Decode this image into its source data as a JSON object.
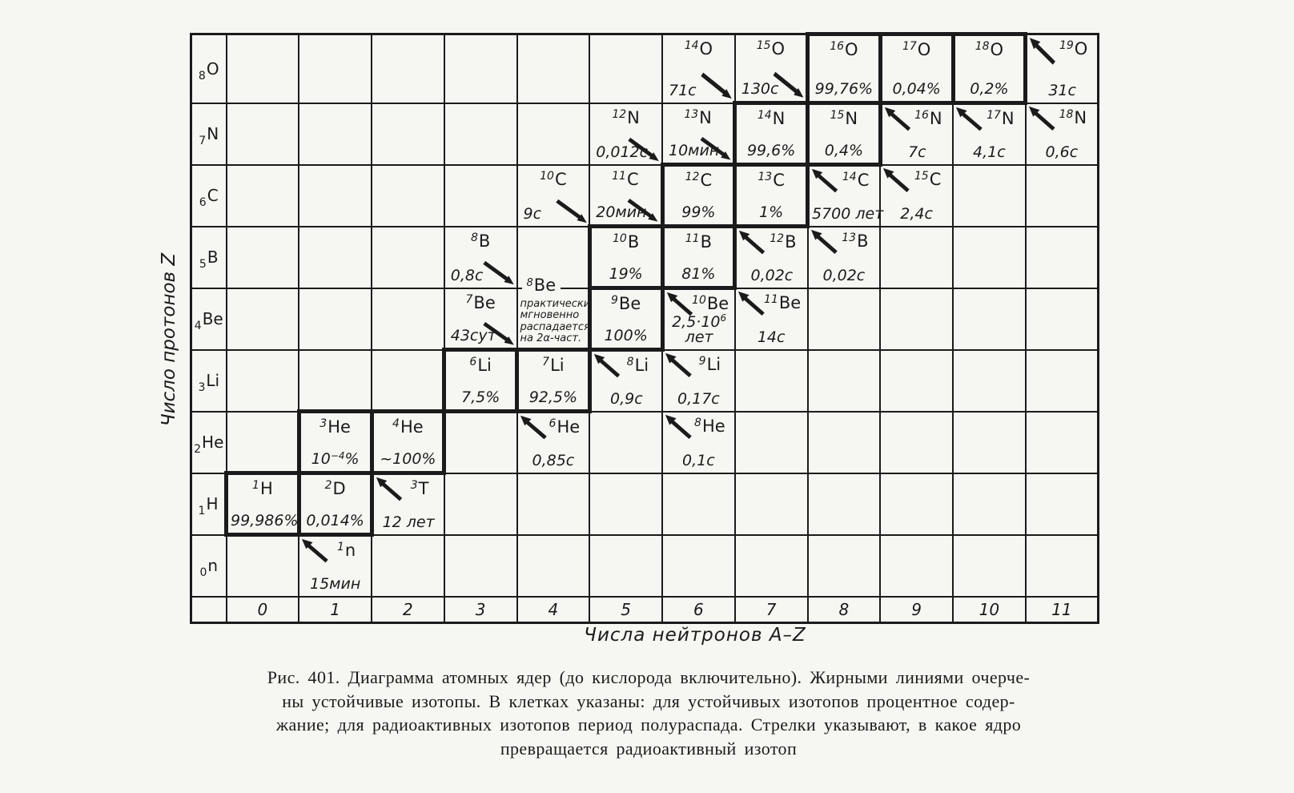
{
  "colors": {
    "ink": "#1b1b1b",
    "paper": "#f6f6f2"
  },
  "figure": {
    "y_axis_label": "Число протонов Z",
    "x_axis_label": "Числа нейтронов A–Z",
    "caption_lines": [
      "Рис. 401. Диаграмма атомных ядер (до кислорода включительно). Жирными линиями очерче-",
      "ны устойчивые изотопы. В клетках указаны: для устойчивых изотопов процентное содер-",
      "жание; для радиоактивных изотопов период полураспада. Стрелки указывают, в какое ядро",
      "превращается радиоактивный изотоп"
    ],
    "column_numbers": [
      "0",
      "1",
      "2",
      "3",
      "4",
      "5",
      "6",
      "7",
      "8",
      "9",
      "10",
      "11"
    ],
    "rows": [
      {
        "z": 8,
        "sub": "8",
        "sym": "O"
      },
      {
        "z": 7,
        "sub": "7",
        "sym": "N"
      },
      {
        "z": 6,
        "sub": "6",
        "sym": "C"
      },
      {
        "z": 5,
        "sub": "5",
        "sym": "B"
      },
      {
        "z": 4,
        "sub": "4",
        "sym": "Be"
      },
      {
        "z": 3,
        "sub": "3",
        "sym": "Li"
      },
      {
        "z": 2,
        "sub": "2",
        "sym": "He"
      },
      {
        "z": 1,
        "sub": "1",
        "sym": "H"
      },
      {
        "z": 0,
        "sub": "0",
        "sym": "n"
      }
    ],
    "isotopes": [
      {
        "z": 8,
        "n": 6,
        "mass": "14",
        "sym": "O",
        "value": "71с",
        "stable": false,
        "arrow": "dr"
      },
      {
        "z": 8,
        "n": 7,
        "mass": "15",
        "sym": "O",
        "value": "130с",
        "stable": false,
        "arrow": "dr"
      },
      {
        "z": 8,
        "n": 8,
        "mass": "16",
        "sym": "O",
        "value": "99,76%",
        "stable": true,
        "arrow": null
      },
      {
        "z": 8,
        "n": 9,
        "mass": "17",
        "sym": "O",
        "value": "0,04%",
        "stable": true,
        "arrow": null
      },
      {
        "z": 8,
        "n": 10,
        "mass": "18",
        "sym": "O",
        "value": "0,2%",
        "stable": true,
        "arrow": null
      },
      {
        "z": 8,
        "n": 11,
        "mass": "19",
        "sym": "O",
        "value": "31с",
        "stable": false,
        "arrow": "ul"
      },
      {
        "z": 7,
        "n": 5,
        "mass": "12",
        "sym": "N",
        "value": "0,012с",
        "stable": false,
        "arrow": "dr"
      },
      {
        "z": 7,
        "n": 6,
        "mass": "13",
        "sym": "N",
        "value": "10мин",
        "stable": false,
        "arrow": "dr"
      },
      {
        "z": 7,
        "n": 7,
        "mass": "14",
        "sym": "N",
        "value": "99,6%",
        "stable": true,
        "arrow": null
      },
      {
        "z": 7,
        "n": 8,
        "mass": "15",
        "sym": "N",
        "value": "0,4%",
        "stable": true,
        "arrow": null
      },
      {
        "z": 7,
        "n": 9,
        "mass": "16",
        "sym": "N",
        "value": "7с",
        "stable": false,
        "arrow": "ul"
      },
      {
        "z": 7,
        "n": 10,
        "mass": "17",
        "sym": "N",
        "value": "4,1с",
        "stable": false,
        "arrow": "ul"
      },
      {
        "z": 7,
        "n": 11,
        "mass": "18",
        "sym": "N",
        "value": "0,6с",
        "stable": false,
        "arrow": "ul"
      },
      {
        "z": 6,
        "n": 4,
        "mass": "10",
        "sym": "C",
        "value": "9с",
        "stable": false,
        "arrow": "dr"
      },
      {
        "z": 6,
        "n": 5,
        "mass": "11",
        "sym": "C",
        "value": "20мин",
        "stable": false,
        "arrow": "dr"
      },
      {
        "z": 6,
        "n": 6,
        "mass": "12",
        "sym": "C",
        "value": "99%",
        "stable": true,
        "arrow": null
      },
      {
        "z": 6,
        "n": 7,
        "mass": "13",
        "sym": "C",
        "value": "1%",
        "stable": true,
        "arrow": null
      },
      {
        "z": 6,
        "n": 8,
        "mass": "14",
        "sym": "C",
        "value": "5700 лет",
        "stable": false,
        "arrow": "ul"
      },
      {
        "z": 6,
        "n": 9,
        "mass": "15",
        "sym": "C",
        "value": "2,4с",
        "stable": false,
        "arrow": "ul"
      },
      {
        "z": 5,
        "n": 3,
        "mass": "8",
        "sym": "B",
        "value": "0,8с",
        "stable": false,
        "arrow": "dr"
      },
      {
        "z": 5,
        "n": 5,
        "mass": "10",
        "sym": "B",
        "value": "19%",
        "stable": true,
        "arrow": null
      },
      {
        "z": 5,
        "n": 6,
        "mass": "11",
        "sym": "B",
        "value": "81%",
        "stable": true,
        "arrow": null
      },
      {
        "z": 5,
        "n": 7,
        "mass": "12",
        "sym": "B",
        "value": "0,02с",
        "stable": false,
        "arrow": "ul"
      },
      {
        "z": 5,
        "n": 8,
        "mass": "13",
        "sym": "B",
        "value": "0,02с",
        "stable": false,
        "arrow": "ul"
      },
      {
        "z": 4,
        "n": 3,
        "mass": "7",
        "sym": "Be",
        "value": "43сут",
        "stable": false,
        "arrow": "dr"
      },
      {
        "z": 4,
        "n": 4,
        "mass": "8",
        "sym": "Be",
        "value": "",
        "stable": false,
        "arrow": null,
        "note_lines": [
          "практически",
          "мгновенно",
          "распадается",
          "на 2α-част."
        ]
      },
      {
        "z": 4,
        "n": 5,
        "mass": "9",
        "sym": "Be",
        "value": "100%",
        "stable": true,
        "arrow": null
      },
      {
        "z": 4,
        "n": 6,
        "mass": "10",
        "sym": "Be",
        "value": "2,5·10^6^\nлет",
        "stable": false,
        "arrow": "ul"
      },
      {
        "z": 4,
        "n": 7,
        "mass": "11",
        "sym": "Be",
        "value": "14с",
        "stable": false,
        "arrow": "ul"
      },
      {
        "z": 3,
        "n": 3,
        "mass": "6",
        "sym": "Li",
        "value": "7,5%",
        "stable": true,
        "arrow": null
      },
      {
        "z": 3,
        "n": 4,
        "mass": "7",
        "sym": "Li",
        "value": "92,5%",
        "stable": true,
        "arrow": null
      },
      {
        "z": 3,
        "n": 5,
        "mass": "8",
        "sym": "Li",
        "value": "0,9с",
        "stable": false,
        "arrow": "ul"
      },
      {
        "z": 3,
        "n": 6,
        "mass": "9",
        "sym": "Li",
        "value": "0,17с",
        "stable": false,
        "arrow": "ul"
      },
      {
        "z": 2,
        "n": 1,
        "mass": "3",
        "sym": "He",
        "value": "10^−4^%",
        "stable": true,
        "arrow": null
      },
      {
        "z": 2,
        "n": 2,
        "mass": "4",
        "sym": "He",
        "value": "~100%",
        "stable": true,
        "arrow": null
      },
      {
        "z": 2,
        "n": 4,
        "mass": "6",
        "sym": "He",
        "value": "0,85с",
        "stable": false,
        "arrow": "ul"
      },
      {
        "z": 2,
        "n": 6,
        "mass": "8",
        "sym": "He",
        "value": "0,1с",
        "stable": false,
        "arrow": "ul"
      },
      {
        "z": 1,
        "n": 0,
        "mass": "1",
        "sym": "H",
        "value": "99,986%",
        "stable": true,
        "arrow": null
      },
      {
        "z": 1,
        "n": 1,
        "mass": "2",
        "sym": "D",
        "value": "0,014%",
        "stable": true,
        "arrow": null
      },
      {
        "z": 1,
        "n": 2,
        "mass": "3",
        "sym": "T",
        "value": "12 лет",
        "stable": false,
        "arrow": "ul"
      },
      {
        "z": 0,
        "n": 1,
        "mass": "1",
        "sym": "n",
        "value": "15мин",
        "stable": false,
        "arrow": "ul"
      }
    ]
  }
}
